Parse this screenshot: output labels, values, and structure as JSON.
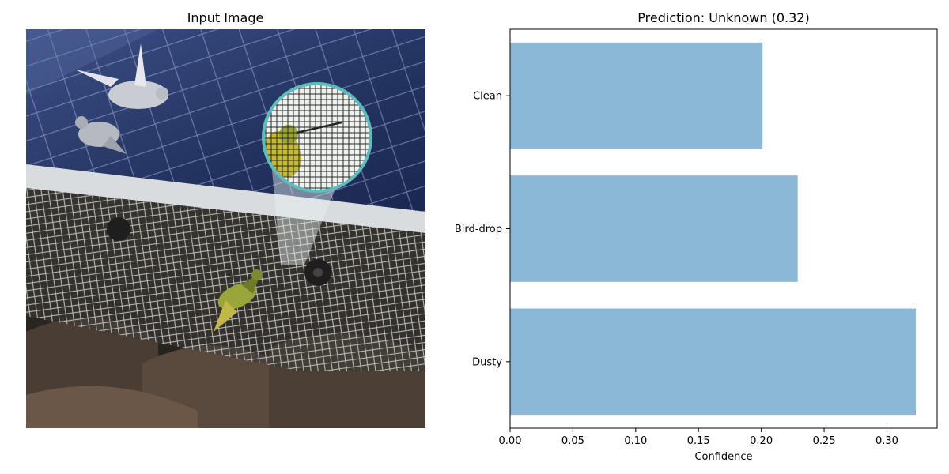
{
  "figure": {
    "left_title": "Input Image",
    "image_subject": "solar-panel-with-birds-and-mesh-guard"
  },
  "chart_data": {
    "type": "bar",
    "orientation": "horizontal",
    "title": "Prediction: Unknown (0.32)",
    "xlabel": "Confidence",
    "ylabel": "",
    "categories": [
      "Dusty",
      "Bird-drop",
      "Clean"
    ],
    "values": [
      0.323,
      0.229,
      0.201
    ],
    "xlim": [
      0.0,
      0.34
    ],
    "xticks": [
      "0.00",
      "0.05",
      "0.10",
      "0.15",
      "0.20",
      "0.25",
      "0.30"
    ],
    "bar_color": "#8cb8d8",
    "grid": false,
    "legend": "none"
  }
}
